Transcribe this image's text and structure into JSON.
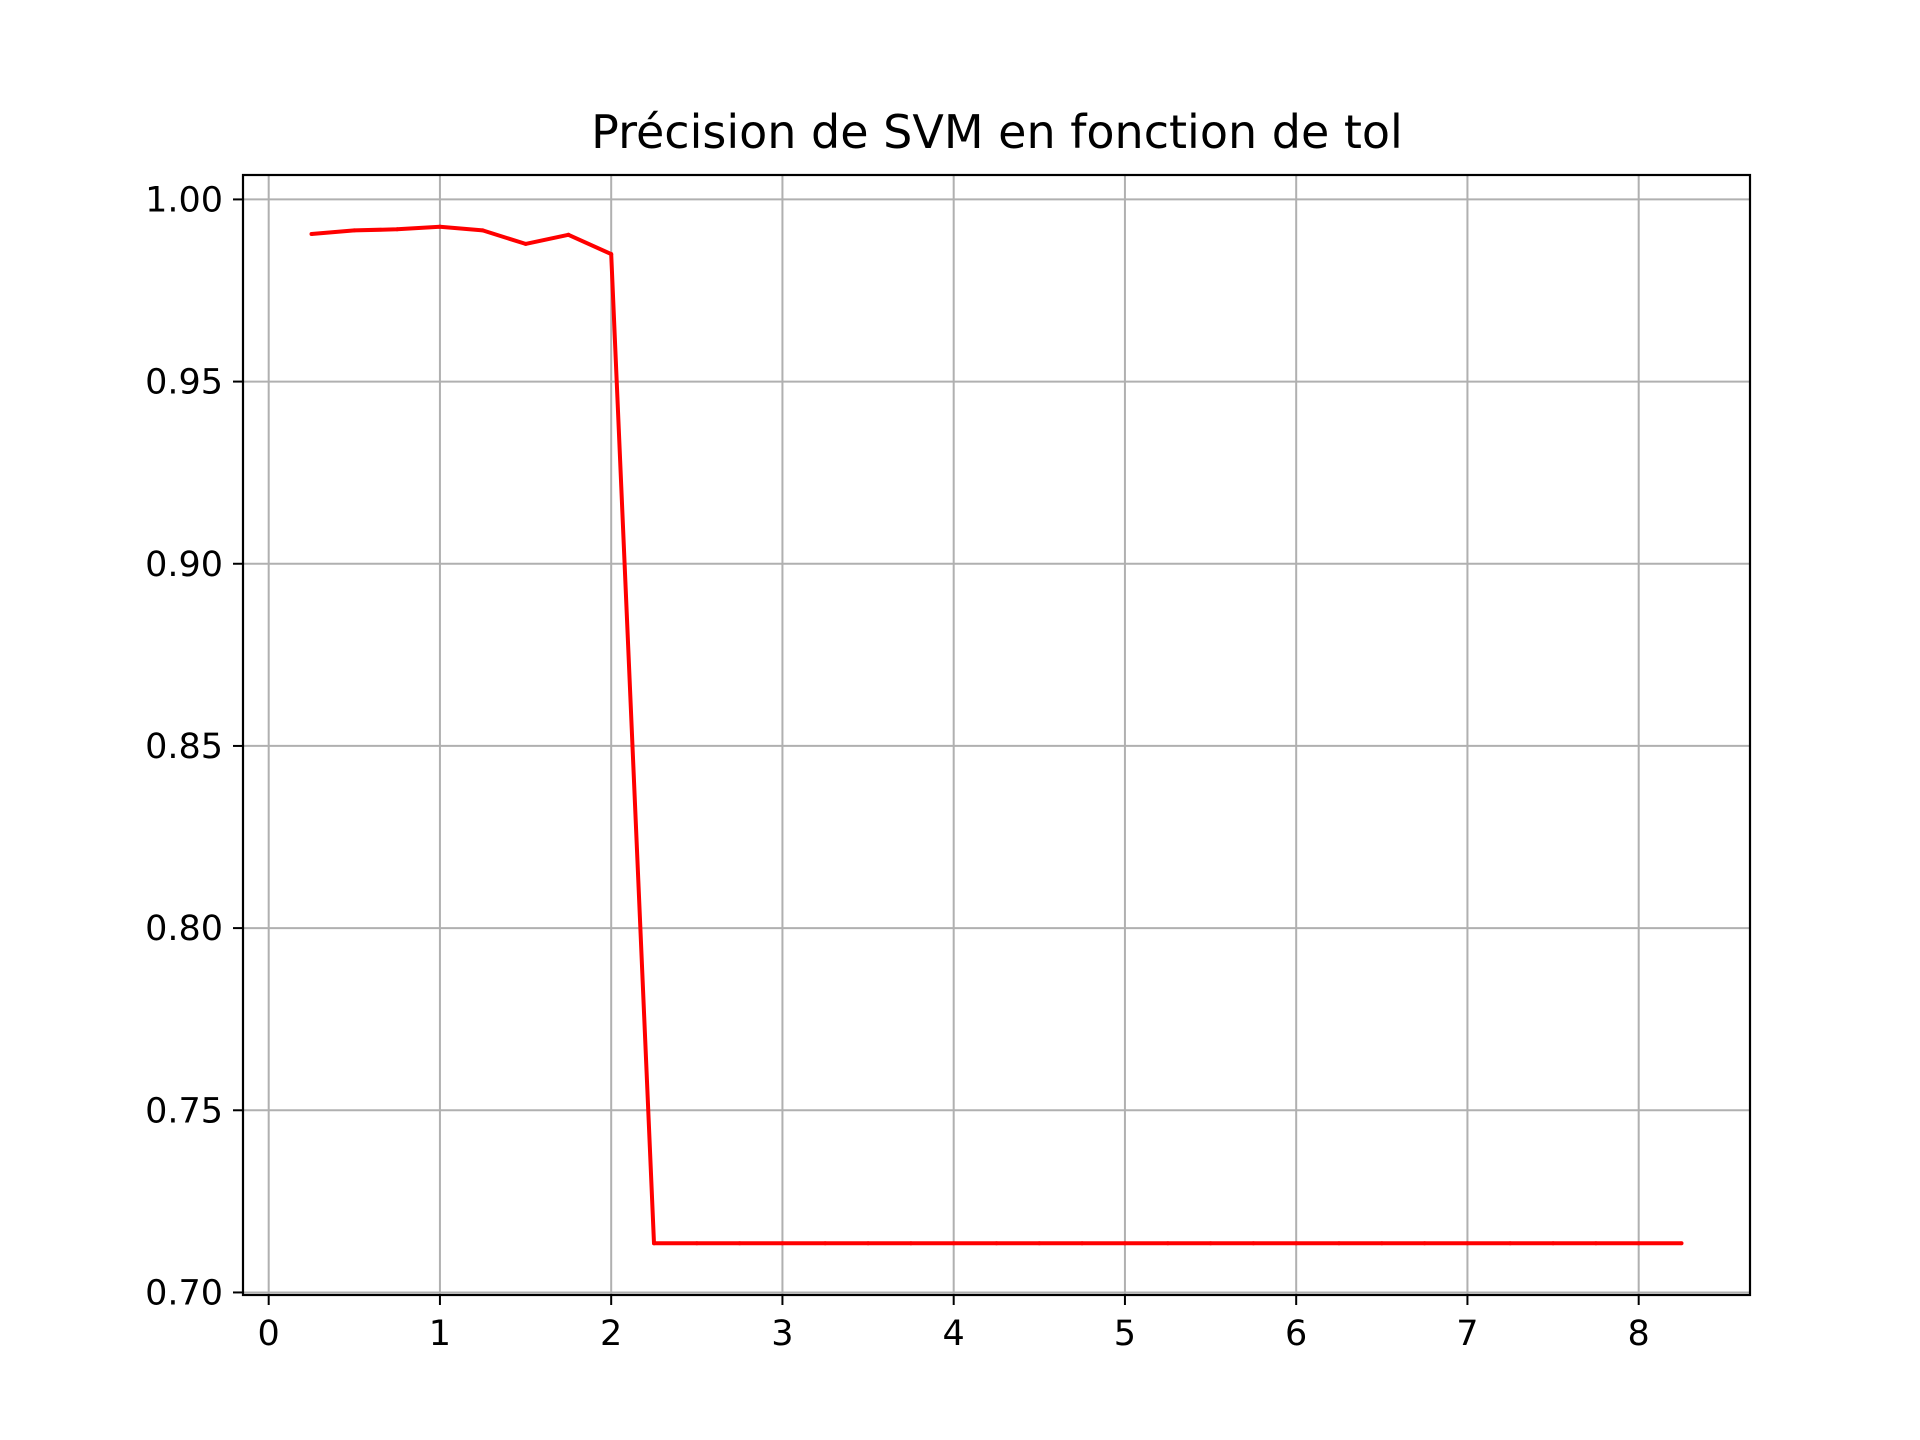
{
  "chart_data": {
    "type": "line",
    "title": "Précision de SVM en fonction de tol",
    "xlabel": "",
    "ylabel": "",
    "xlim": [
      -0.15,
      8.65
    ],
    "ylim": [
      0.6993,
      1.0067
    ],
    "grid": true,
    "x_ticks": [
      0,
      1,
      2,
      3,
      4,
      5,
      6,
      7,
      8
    ],
    "x_tick_labels": [
      "0",
      "1",
      "2",
      "3",
      "4",
      "5",
      "6",
      "7",
      "8"
    ],
    "y_ticks": [
      0.7,
      0.75,
      0.8,
      0.85,
      0.9,
      0.95,
      1.0
    ],
    "y_tick_labels": [
      "0.70",
      "0.75",
      "0.80",
      "0.85",
      "0.90",
      "0.95",
      "1.00"
    ],
    "series": [
      {
        "color": "#ff0000",
        "x": [
          0.25,
          0.5,
          0.75,
          1.0,
          1.25,
          1.5,
          1.75,
          2.0,
          2.25,
          2.5,
          2.75,
          3.0,
          3.25,
          3.5,
          3.75,
          4.0,
          4.25,
          4.5,
          4.75,
          5.0,
          5.25,
          5.5,
          5.75,
          6.0,
          6.25,
          6.5,
          6.75,
          7.0,
          7.25,
          7.5,
          7.75,
          8.0,
          8.25
        ],
        "y": [
          0.9905,
          0.9915,
          0.9918,
          0.9925,
          0.9915,
          0.9878,
          0.9903,
          0.985,
          0.7135,
          0.7135,
          0.7135,
          0.7135,
          0.7135,
          0.7135,
          0.7135,
          0.7135,
          0.7135,
          0.7135,
          0.7135,
          0.7135,
          0.7135,
          0.7135,
          0.7135,
          0.7135,
          0.7135,
          0.7135,
          0.7135,
          0.7135,
          0.7135,
          0.7135,
          0.7135,
          0.7135,
          0.7135
        ]
      }
    ]
  }
}
